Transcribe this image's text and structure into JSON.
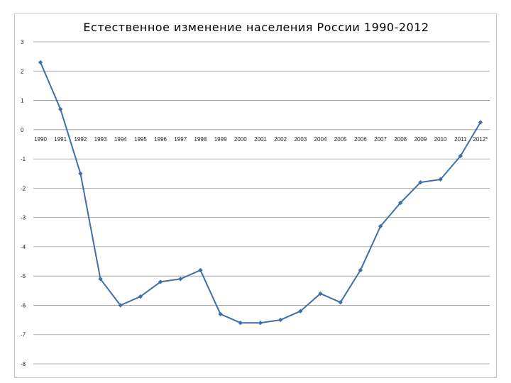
{
  "chart_data": {
    "type": "line",
    "title": "Естественное изменение населения России 1990-2012",
    "xlabel": "",
    "ylabel": "",
    "categories": [
      "1990",
      "1991",
      "1992",
      "1993",
      "1994",
      "1995",
      "1996",
      "1997",
      "1998",
      "1999",
      "2000",
      "2001",
      "2002",
      "2003",
      "2004",
      "2005",
      "2006",
      "2007",
      "2008",
      "2009",
      "2010",
      "2011",
      "2012*"
    ],
    "series": [
      {
        "values": [
          2.3,
          0.7,
          -1.5,
          -5.1,
          -6.0,
          -5.7,
          -5.2,
          -5.1,
          -4.8,
          -6.3,
          -6.6,
          -6.6,
          -6.5,
          -6.2,
          -5.6,
          -5.9,
          -4.8,
          -3.3,
          -2.5,
          -1.8,
          -1.7,
          -0.9,
          0.25
        ],
        "color": "#3f6fa8"
      }
    ],
    "ylim": [
      -8,
      3
    ],
    "yticks": [
      3,
      2,
      1,
      0,
      -1,
      -2,
      -3,
      -4,
      -5,
      -6,
      -7,
      -8
    ],
    "grid": true,
    "legend": "none",
    "gridColor": "#9a9a9a"
  }
}
